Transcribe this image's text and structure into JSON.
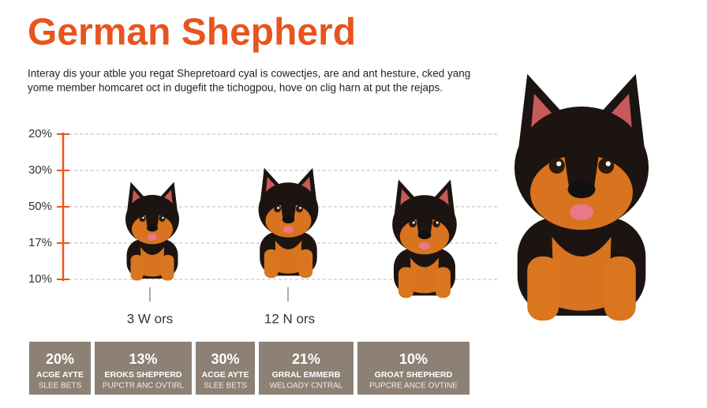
{
  "header": {
    "title": "German Shepherd",
    "subtitle_lines": [
      "Interay dis your atble you regat Shepretoard cyal is cowectjes, are and ant hesture, cked yang",
      "yome member homcaret oct in dugefit the tichogpou, hove on clig harn at put the rejaps."
    ]
  },
  "axis": {
    "labels": [
      "20%",
      "30%",
      "50%",
      "17%",
      "10%"
    ],
    "x_labels": [
      "3 W ors",
      "12 N ors"
    ]
  },
  "cards": [
    {
      "value": "20%",
      "line1": "ACGE AYTE",
      "line2": "SLEE BETS"
    },
    {
      "value": "13%",
      "line1": "EROKS SHEPPERD",
      "line2": "PUPCTR ANC OVTIRL"
    },
    {
      "value": "30%",
      "line1": "ACGE AYTE",
      "line2": "SLEE BETS"
    },
    {
      "value": "21%",
      "line1": "GRRAL EMMERB",
      "line2": "WELOADY CNTRAL"
    },
    {
      "value": "10%",
      "line1": "GROAT SHEPHERD",
      "line2": "PUPCRE ANCE OVTINE"
    }
  ]
}
